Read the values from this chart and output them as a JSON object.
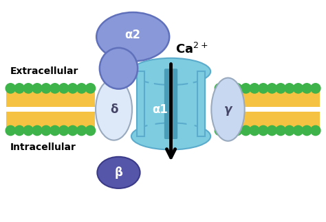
{
  "bg_color": "#ffffff",
  "membrane_color": "#f5c242",
  "bead_color": "#3db34a",
  "alpha1_color": "#7dcce0",
  "alpha1_dark": "#4a9db8",
  "alpha1_edge": "#5aabcc",
  "alpha2_color": "#8898d8",
  "alpha2_edge": "#6070bb",
  "delta_color": "#dde8f8",
  "delta_edge": "#99aabf",
  "beta_color": "#5555aa",
  "beta_edge": "#3a3a88",
  "gamma_color": "#c8d8f0",
  "gamma_edge": "#99aabf",
  "arrow_color": "#000000",
  "text_color": "#000000",
  "label_alpha2": "α2",
  "label_alpha1": "α1",
  "label_delta": "δ",
  "label_beta": "β",
  "label_gamma": "γ",
  "label_extra": "Extracellular",
  "label_intra": "Intracellular"
}
